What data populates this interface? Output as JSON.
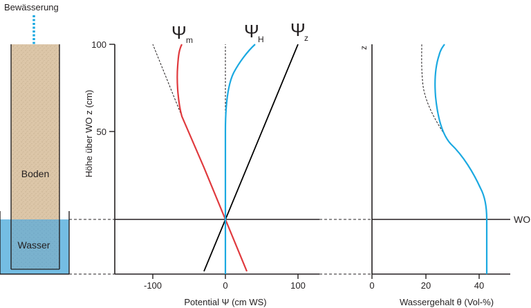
{
  "column": {
    "irrigation_label": "Bewässerung",
    "soil_label": "Boden",
    "water_label": "Wasser"
  },
  "potential_chart": {
    "y_axis_label": "Höhe über WO z (cm)",
    "x_axis_label": "Potential  Ψ (cm WS)",
    "y_ticks": [
      "100",
      "50"
    ],
    "x_ticks": [
      "-100",
      "0",
      "100"
    ],
    "psi_m": {
      "symbol": "Ψ",
      "subscript": "m"
    },
    "psi_h": {
      "symbol": "Ψ",
      "subscript": "H"
    },
    "psi_z": {
      "symbol": "Ψ",
      "subscript": "z"
    }
  },
  "water_content_chart": {
    "y_axis_label": "z",
    "x_axis_label": "Wassergehalt  θ (Vol-%)",
    "x_ticks": [
      "0",
      "20",
      "40"
    ]
  },
  "water_table_label": "WO",
  "colors": {
    "psi_m": "#e03a3e",
    "psi_h": "#1ba9e1",
    "psi_z": "#000000",
    "soil": "#dcc6a8",
    "water": "#74bde3"
  },
  "chart_data": [
    {
      "type": "line",
      "title": "",
      "xlabel": "Potential  Ψ (cm WS)",
      "ylabel": "Höhe über WO z (cm)",
      "xlim": [
        -150,
        130
      ],
      "ylim": [
        -30,
        100
      ],
      "series": [
        {
          "name": "Ψm",
          "x": [
            30,
            0,
            -30,
            -60,
            -62,
            -67,
            -70,
            -60
          ],
          "z": [
            -30,
            0,
            30,
            60,
            70,
            85,
            90,
            100
          ]
        },
        {
          "name": "Ψm (dashed)",
          "x": [
            -60,
            -105
          ],
          "z": [
            60,
            100
          ]
        },
        {
          "name": "ΨH",
          "x": [
            0,
            0,
            0,
            2,
            10,
            25,
            35,
            40
          ],
          "z": [
            -30,
            0,
            50,
            60,
            75,
            90,
            96,
            100
          ]
        },
        {
          "name": "ΨH (dashed)",
          "x": [
            0,
            0
          ],
          "z": [
            50,
            100
          ]
        },
        {
          "name": "Ψz",
          "x": [
            -30,
            0,
            100
          ],
          "z": [
            -30,
            0,
            100
          ]
        }
      ]
    },
    {
      "type": "line",
      "title": "",
      "xlabel": "Wassergehalt  θ (Vol-%)",
      "ylabel": "z",
      "xlim": [
        0,
        50
      ],
      "ylim": [
        -30,
        100
      ],
      "series": [
        {
          "name": "θ",
          "x": [
            43,
            43,
            42,
            38,
            30,
            27,
            25,
            23,
            24,
            28
          ],
          "z": [
            -30,
            0,
            10,
            25,
            40,
            45,
            55,
            75,
            90,
            100
          ]
        },
        {
          "name": "θ (dashed)",
          "x": [
            27,
            22,
            19,
            19
          ],
          "z": [
            45,
            65,
            85,
            100
          ]
        }
      ]
    }
  ]
}
